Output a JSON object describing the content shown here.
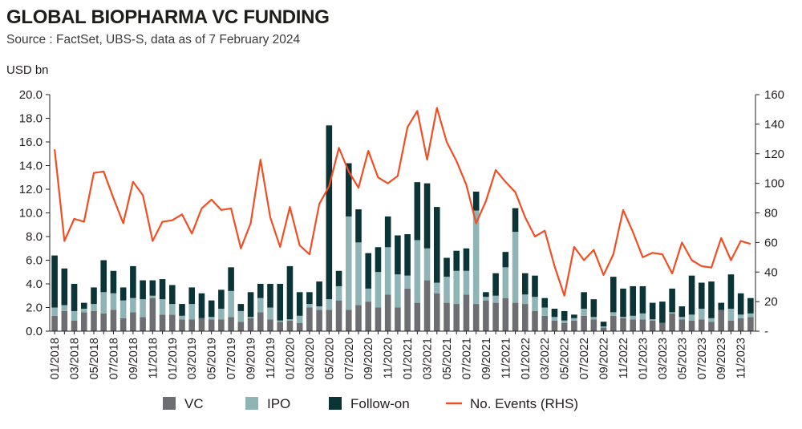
{
  "header": {
    "title": "GLOBAL BIOPHARMA VC FUNDING",
    "source": "Source  : FactSet, UBS-S, data as of 7 February 2024"
  },
  "colors": {
    "vc": "#6d6e71",
    "ipo": "#8fb4b6",
    "follow_on": "#0b3437",
    "events": "#f04e23",
    "axis": "#231f20"
  },
  "chart_data": {
    "type": "bar",
    "stacked": true,
    "ylabel": "USD bn",
    "ylim": [
      0,
      20
    ],
    "y2lim": [
      0,
      160
    ],
    "yticks": [
      "0.0",
      "2.0",
      "4.0",
      "6.0",
      "8.0",
      "10.0",
      "12.0",
      "14.0",
      "16.0",
      "18.0",
      "20.0"
    ],
    "y2ticks": [
      "-",
      "20",
      "40",
      "60",
      "80",
      "100",
      "120",
      "140",
      "160"
    ],
    "grid": false,
    "legend_position": "bottom",
    "categories": [
      "01/2018",
      "02/2018",
      "03/2018",
      "04/2018",
      "05/2018",
      "06/2018",
      "07/2018",
      "08/2018",
      "09/2018",
      "10/2018",
      "11/2018",
      "12/2018",
      "01/2019",
      "02/2019",
      "03/2019",
      "04/2019",
      "05/2019",
      "06/2019",
      "07/2019",
      "08/2019",
      "09/2019",
      "10/2019",
      "11/2019",
      "12/2019",
      "01/2020",
      "02/2020",
      "03/2020",
      "04/2020",
      "05/2020",
      "06/2020",
      "07/2020",
      "08/2020",
      "09/2020",
      "10/2020",
      "11/2020",
      "12/2020",
      "01/2021",
      "02/2021",
      "03/2021",
      "04/2021",
      "05/2021",
      "06/2021",
      "07/2021",
      "08/2021",
      "09/2021",
      "10/2021",
      "11/2021",
      "12/2021",
      "01/2022",
      "02/2022",
      "03/2022",
      "04/2022",
      "05/2022",
      "06/2022",
      "07/2022",
      "08/2022",
      "09/2022",
      "10/2022",
      "11/2022",
      "12/2022",
      "01/2023",
      "02/2023",
      "03/2023",
      "04/2023",
      "05/2023",
      "06/2023",
      "07/2023",
      "08/2023",
      "09/2023",
      "10/2023",
      "11/2023",
      "12/2023"
    ],
    "x_tick_labels": [
      "01/2018",
      "03/2018",
      "05/2018",
      "07/2018",
      "09/2018",
      "11/2018",
      "01/2019",
      "03/2019",
      "05/2019",
      "07/2019",
      "09/2019",
      "11/2019",
      "01/2020",
      "03/2020",
      "05/2020",
      "07/2020",
      "09/2020",
      "11/2020",
      "01/2021",
      "03/2021",
      "05/2021",
      "07/2021",
      "09/2021",
      "11/2021",
      "01/2022",
      "03/2022",
      "05/2022",
      "07/2022",
      "09/2022",
      "11/2022",
      "01/2023",
      "03/2023",
      "05/2023",
      "07/2023",
      "09/2023",
      "11/2023"
    ],
    "series": [
      {
        "name": "VC",
        "type": "bar",
        "axis": "left",
        "values": [
          1.3,
          1.7,
          0.9,
          1.6,
          1.7,
          1.5,
          1.8,
          1.1,
          1.6,
          1.2,
          2.8,
          1.4,
          1.4,
          1.0,
          1.0,
          1.1,
          1.0,
          1.0,
          1.2,
          0.8,
          1.1,
          1.6,
          1.0,
          0.8,
          0.9,
          0.7,
          2.0,
          1.8,
          1.8,
          2.6,
          1.8,
          2.2,
          2.5,
          2.0,
          3.1,
          2.0,
          3.6,
          2.4,
          4.3,
          3.2,
          2.4,
          2.3,
          3.1,
          2.3,
          2.6,
          2.4,
          2.8,
          2.4,
          2.3,
          1.7,
          1.3,
          0.9,
          0.7,
          0.9,
          1.3,
          1.0,
          0.3,
          1.3,
          1.1,
          1.0,
          1.0,
          0.9,
          0.7,
          1.5,
          1.0,
          0.9,
          1.0,
          0.8,
          1.8,
          0.9,
          1.1,
          1.2
        ]
      },
      {
        "name": "IPO",
        "type": "bar",
        "axis": "left",
        "values": [
          0.7,
          0.5,
          0.8,
          0.3,
          0.6,
          1.8,
          1.4,
          1.5,
          1.2,
          1.5,
          0.2,
          1.3,
          0.9,
          0.3,
          1.3,
          0.0,
          0.2,
          0.9,
          2.2,
          0.9,
          0.1,
          1.2,
          1.0,
          0.1,
          0.1,
          0.6,
          0.3,
          0.3,
          0.9,
          1.2,
          7.9,
          5.3,
          1.1,
          3.0,
          4.0,
          2.8,
          1.1,
          5.3,
          2.7,
          0.9,
          2.2,
          2.8,
          2.0,
          7.9,
          0.3,
          0.6,
          2.6,
          6.0,
          0.8,
          1.2,
          0.7,
          0.3,
          0.2,
          0.2,
          0.6,
          0.2,
          0.1,
          0.3,
          0.1,
          0.3,
          0.5,
          0.1,
          0.0,
          0.1,
          0.2,
          0.5,
          0.9,
          0.3,
          0.0,
          1.0,
          0.3,
          0.3
        ]
      },
      {
        "name": "Follow-on",
        "type": "bar",
        "axis": "left",
        "values": [
          4.4,
          3.1,
          2.3,
          0.5,
          1.4,
          2.7,
          1.9,
          1.1,
          2.7,
          1.6,
          1.3,
          1.7,
          1.6,
          1.0,
          1.4,
          2.1,
          1.4,
          1.6,
          2.0,
          0.6,
          2.1,
          1.2,
          2.0,
          3.1,
          4.5,
          2.0,
          1.0,
          2.1,
          14.7,
          1.3,
          4.5,
          2.8,
          3.0,
          2.1,
          2.6,
          3.3,
          3.5,
          4.9,
          5.5,
          6.4,
          1.6,
          1.7,
          1.9,
          1.6,
          0.4,
          1.9,
          1.3,
          2.0,
          1.8,
          1.8,
          0.8,
          0.7,
          0.8,
          0.3,
          1.4,
          1.5,
          0.4,
          3.0,
          2.4,
          2.5,
          2.3,
          1.4,
          1.8,
          2.0,
          0.9,
          3.3,
          2.2,
          3.1,
          0.6,
          2.9,
          1.8,
          1.3
        ]
      },
      {
        "name": "No. Events (RHS)",
        "type": "line",
        "axis": "right",
        "values": [
          123,
          61,
          76,
          74,
          107,
          108,
          90,
          73,
          101,
          92,
          61,
          74,
          75,
          79,
          66,
          83,
          89,
          82,
          83,
          56,
          73,
          116,
          77,
          57,
          84,
          58,
          52,
          86,
          98,
          124,
          108,
          97,
          122,
          104,
          100,
          105,
          138,
          149,
          116,
          151,
          128,
          115,
          99,
          73,
          88,
          109,
          101,
          94,
          77,
          64,
          68,
          44,
          24,
          57,
          48,
          55,
          38,
          52,
          82,
          67,
          50,
          53,
          52,
          39,
          60,
          48,
          44,
          43,
          63,
          48,
          61,
          59
        ]
      }
    ]
  }
}
